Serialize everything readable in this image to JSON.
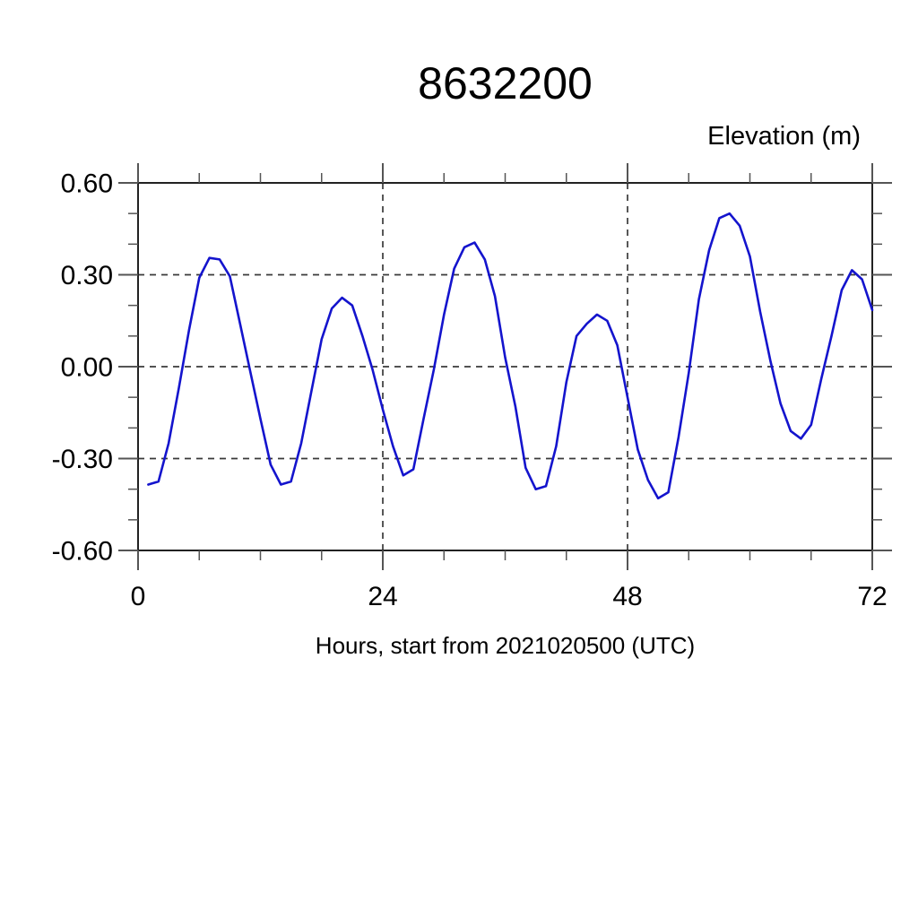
{
  "page": {
    "background": "#ffffff"
  },
  "chart_data": {
    "type": "line",
    "title": "8632200",
    "y_axis_header": "Elevation (m)",
    "xlabel": "Hours, start from 2021020500 (UTC)",
    "xlim": [
      0,
      72
    ],
    "ylim": [
      -0.6,
      0.6
    ],
    "x_major_ticks": [
      0,
      24,
      48,
      72
    ],
    "x_minor_step": 6,
    "y_major_ticks": [
      {
        "value": 0.6,
        "label": "0.60"
      },
      {
        "value": 0.3,
        "label": "0.30"
      },
      {
        "value": 0.0,
        "label": "0.00"
      },
      {
        "value": -0.3,
        "label": "-0.30"
      },
      {
        "value": -0.6,
        "label": "-0.60"
      }
    ],
    "y_minor_step": 0.1,
    "x_gridlines": [
      24,
      48
    ],
    "y_gridlines": [
      0.3,
      0.0,
      -0.3
    ],
    "grid_style": "dashed",
    "legend": null,
    "series": [
      {
        "name": "elevation",
        "color": "#1414cd",
        "x_start_hour": 1,
        "x_step_hours": 1,
        "values": [
          -0.385,
          -0.375,
          -0.25,
          -0.07,
          0.12,
          0.29,
          0.355,
          0.35,
          0.295,
          0.14,
          -0.015,
          -0.17,
          -0.32,
          -0.385,
          -0.375,
          -0.25,
          -0.08,
          0.09,
          0.19,
          0.225,
          0.2,
          0.1,
          -0.01,
          -0.14,
          -0.26,
          -0.355,
          -0.335,
          -0.17,
          -0.01,
          0.17,
          0.32,
          0.39,
          0.405,
          0.35,
          0.23,
          0.03,
          -0.13,
          -0.33,
          -0.4,
          -0.39,
          -0.26,
          -0.05,
          0.1,
          0.14,
          0.17,
          0.15,
          0.07,
          -0.1,
          -0.27,
          -0.37,
          -0.43,
          -0.41,
          -0.23,
          -0.02,
          0.22,
          0.38,
          0.485,
          0.5,
          0.46,
          0.36,
          0.18,
          0.02,
          -0.12,
          -0.21,
          -0.235,
          -0.19,
          -0.04,
          0.1,
          0.25,
          0.315,
          0.285,
          0.185
        ]
      }
    ]
  }
}
